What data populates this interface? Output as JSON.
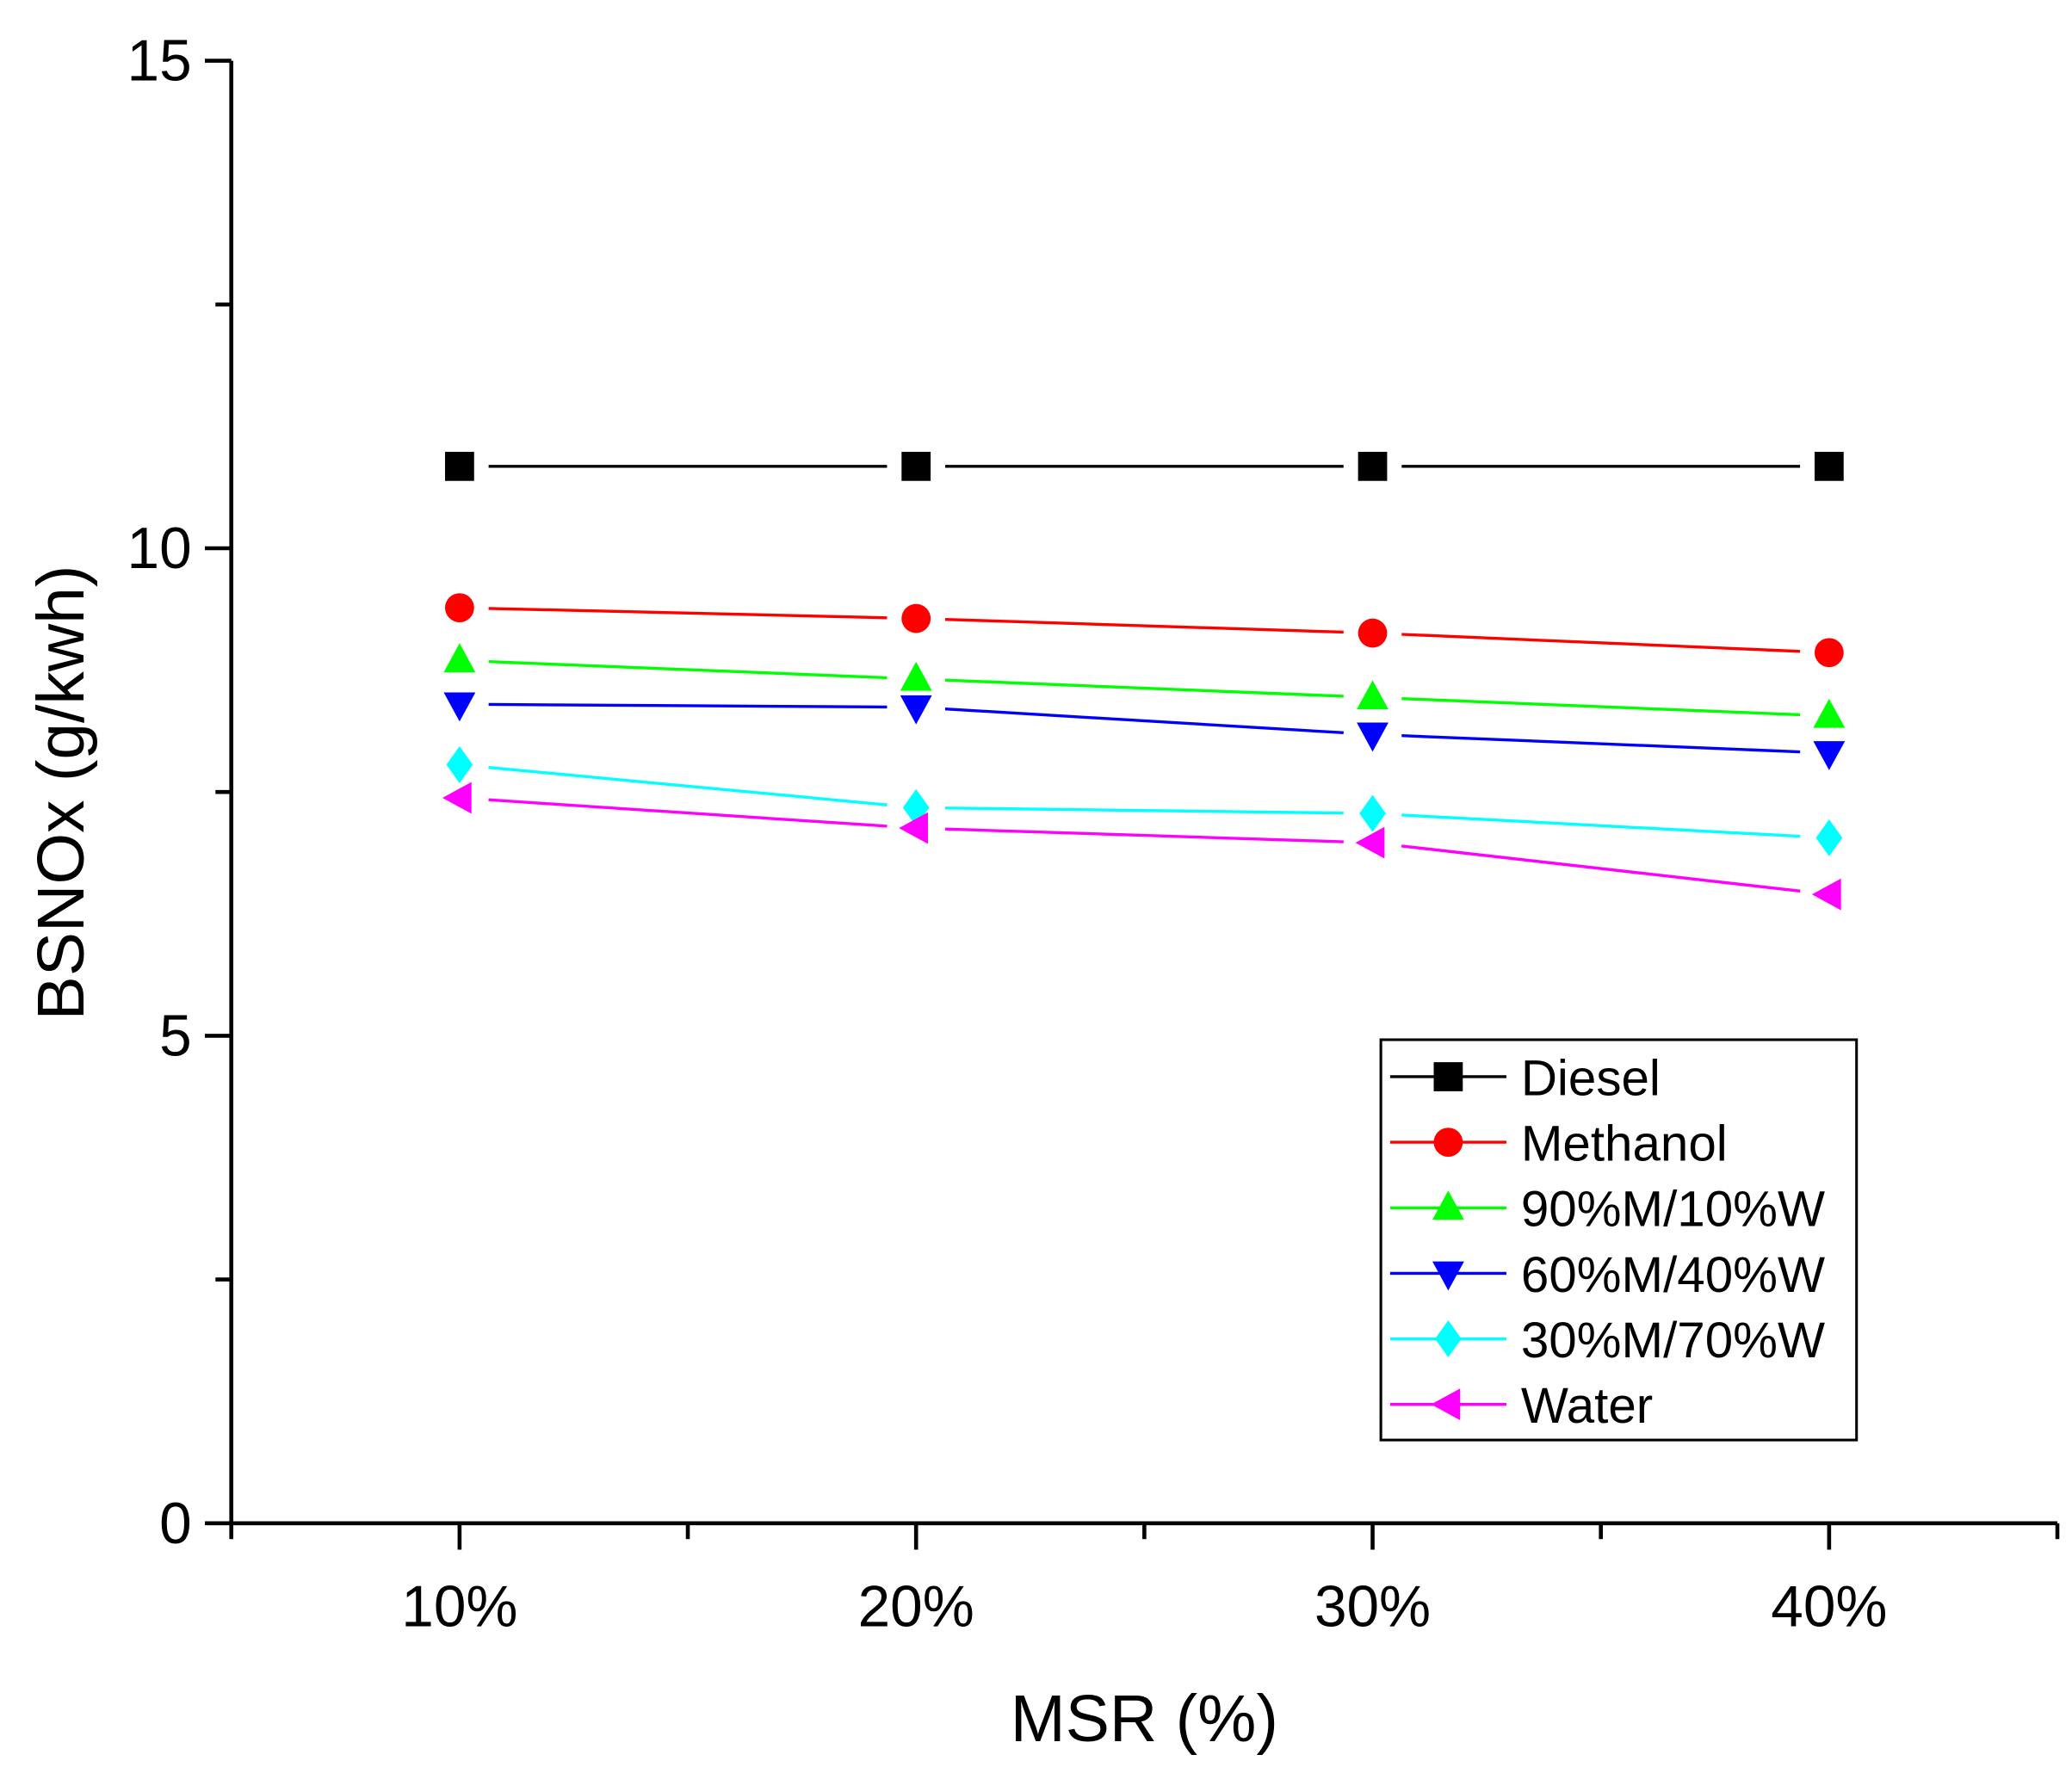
{
  "chart_data": {
    "type": "line",
    "title": "",
    "xlabel": "MSR (%)",
    "ylabel": "BSNOx (g/kwh)",
    "categories": [
      "10%",
      "20%",
      "30%",
      "40%"
    ],
    "x": [
      10,
      20,
      30,
      40
    ],
    "xlim": [
      5,
      45
    ],
    "ylim": [
      0,
      15
    ],
    "yticks": [
      0,
      5,
      10,
      15
    ],
    "grid": false,
    "legend_position": "bottom-right",
    "series": [
      {
        "name": "Diesel",
        "color": "#000000",
        "marker": "square",
        "values": [
          10.84,
          10.84,
          10.84,
          10.84
        ]
      },
      {
        "name": "Methanol",
        "color": "#ff0000",
        "marker": "circle",
        "values": [
          9.39,
          9.28,
          9.13,
          8.93
        ]
      },
      {
        "name": "90%M/10%W",
        "color": "#00ff00",
        "marker": "triangle-up",
        "values": [
          8.85,
          8.66,
          8.47,
          8.28
        ]
      },
      {
        "name": "60%M/40%W",
        "color": "#0000ff",
        "marker": "triangle-down",
        "values": [
          8.4,
          8.37,
          8.09,
          7.9
        ]
      },
      {
        "name": "30%M/70%W",
        "color": "#00ffff",
        "marker": "diamond",
        "values": [
          7.78,
          7.34,
          7.28,
          7.03
        ]
      },
      {
        "name": "Water",
        "color": "#ff00ff",
        "marker": "triangle-left",
        "values": [
          7.44,
          7.13,
          6.98,
          6.45
        ]
      }
    ]
  }
}
